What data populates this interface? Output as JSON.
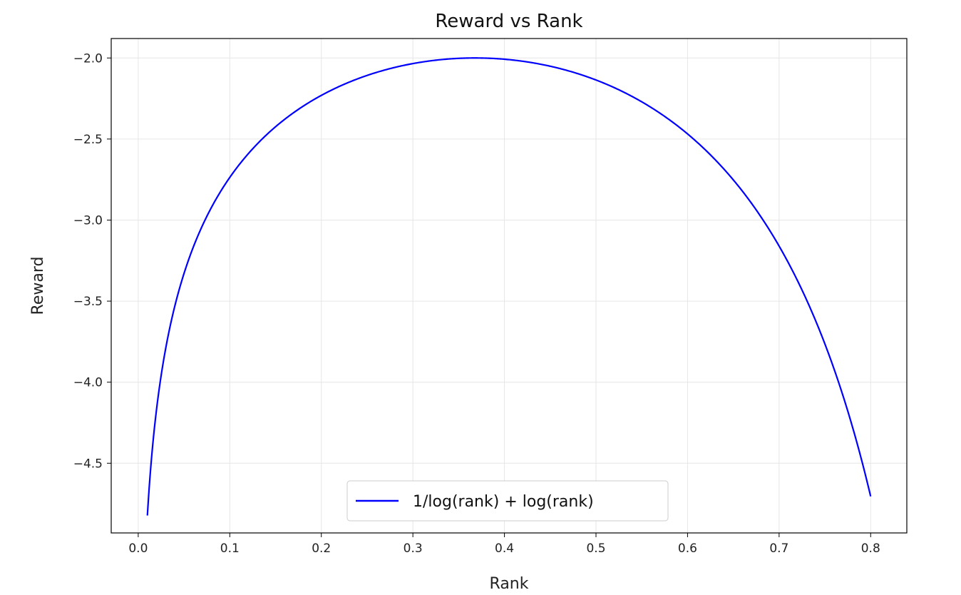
{
  "chart_data": {
    "type": "line",
    "title": "Reward vs Rank",
    "xlabel": "Rank",
    "ylabel": "Reward",
    "xlim": [
      -0.0295,
      0.8395
    ],
    "ylim": [
      -4.93,
      -1.88
    ],
    "xticks": [
      0.0,
      0.1,
      0.2,
      0.3,
      0.4,
      0.5,
      0.6,
      0.7,
      0.8
    ],
    "xtick_labels": [
      "0.0",
      "0.1",
      "0.2",
      "0.3",
      "0.4",
      "0.5",
      "0.6",
      "0.7",
      "0.8"
    ],
    "yticks": [
      -2.0,
      -2.5,
      -3.0,
      -3.5,
      -4.0,
      -4.5
    ],
    "ytick_labels": [
      "−2.0",
      "−2.5",
      "−3.0",
      "−3.5",
      "−4.0",
      "−4.5"
    ],
    "grid": true,
    "legend": {
      "position": "bottom-center",
      "entries": [
        "1/log(rank) + log(rank)"
      ]
    },
    "series": [
      {
        "name": "1/log(rank) + log(rank)",
        "color": "#0000ff",
        "x": [
          0.01,
          0.02,
          0.03,
          0.04,
          0.05,
          0.06,
          0.08,
          0.1,
          0.12,
          0.15,
          0.18,
          0.2,
          0.25,
          0.3,
          0.35,
          0.3679,
          0.4,
          0.45,
          0.5,
          0.55,
          0.6,
          0.65,
          0.7,
          0.75,
          0.8
        ],
        "y": [
          -4.823,
          -4.168,
          -3.791,
          -3.53,
          -3.334,
          -3.169,
          -2.921,
          -2.737,
          -2.592,
          -2.424,
          -2.298,
          -2.231,
          -2.107,
          -2.034,
          -2.002,
          -2.0,
          -2.007,
          -2.051,
          -2.136,
          -2.271,
          -2.468,
          -2.752,
          -3.16,
          -3.764,
          -4.705
        ]
      }
    ]
  }
}
